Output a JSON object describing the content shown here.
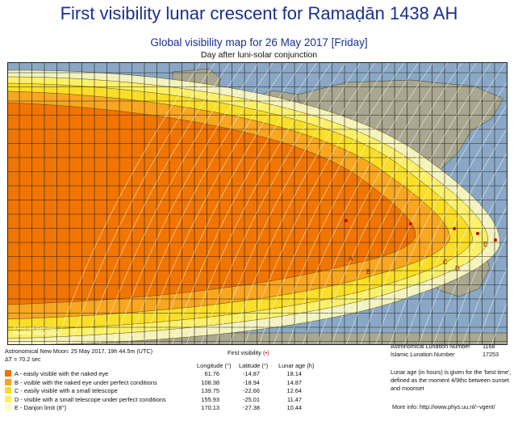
{
  "title": "First visibility lunar crescent for Ramaḍān 1438 AH",
  "subtitle": "Global visibility map for 26 May 2017 [Friday]",
  "subtitle2": "Day after luni-solar conjunction",
  "credit": [
    "© R.H. van Gent 2009",
    "Based on Yallop (1997)"
  ],
  "new_moon": "Astronomical New Moon: 25 May 2017, 19h 44.5m (UTC)",
  "delta_t": "ΔT = 70.2 sec",
  "first_visibility_label": "First visibility",
  "first_visibility_marker": "(•)",
  "lunation_number_label": "Astronomical Lunation Number",
  "lunation_number": "1168",
  "islamic_lunation_label": "Islamic Lunation Number",
  "islamic_lunation": "17253",
  "columns": [
    "Longitude (°)",
    "Latitude (°)",
    "Lunar age (h)"
  ],
  "legend": [
    {
      "label": "A - easily visible with the naked eye",
      "color": "#f07000",
      "lon": "61.76",
      "lat": "-14.87",
      "age": "18.14"
    },
    {
      "label": "B - visible with the naked eye under perfect conditions",
      "color": "#f8a020",
      "lon": "108.38",
      "lat": "-18.94",
      "age": "14.87"
    },
    {
      "label": "C - easily visible with a small telescope",
      "color": "#fadb20",
      "lon": "139.75",
      "lat": "-22.66",
      "age": "12.64"
    },
    {
      "label": "D - visible with a small telescope under perfect conditions",
      "color": "#fcf060",
      "lon": "155.93",
      "lat": "-25.01",
      "age": "11.47"
    },
    {
      "label": "E - Danjon limit (8°)",
      "color": "#fdfbc0",
      "lon": "170.13",
      "lat": "-27.38",
      "age": "10.44"
    }
  ],
  "lunar_age_note": "Lunar age (in hours) is given for the 'best time', defined as the moment 4/9ths between sunset and moonset",
  "more_info": "More info: http://www.phys.uu.nl/~vgent/",
  "map_labels": [
    "A",
    "B",
    "C",
    "D",
    "E"
  ],
  "colors": {
    "ocean": "#8aa8c6",
    "land": "#a7a590",
    "title": "#1a2f8f",
    "marker": "#d00000"
  }
}
